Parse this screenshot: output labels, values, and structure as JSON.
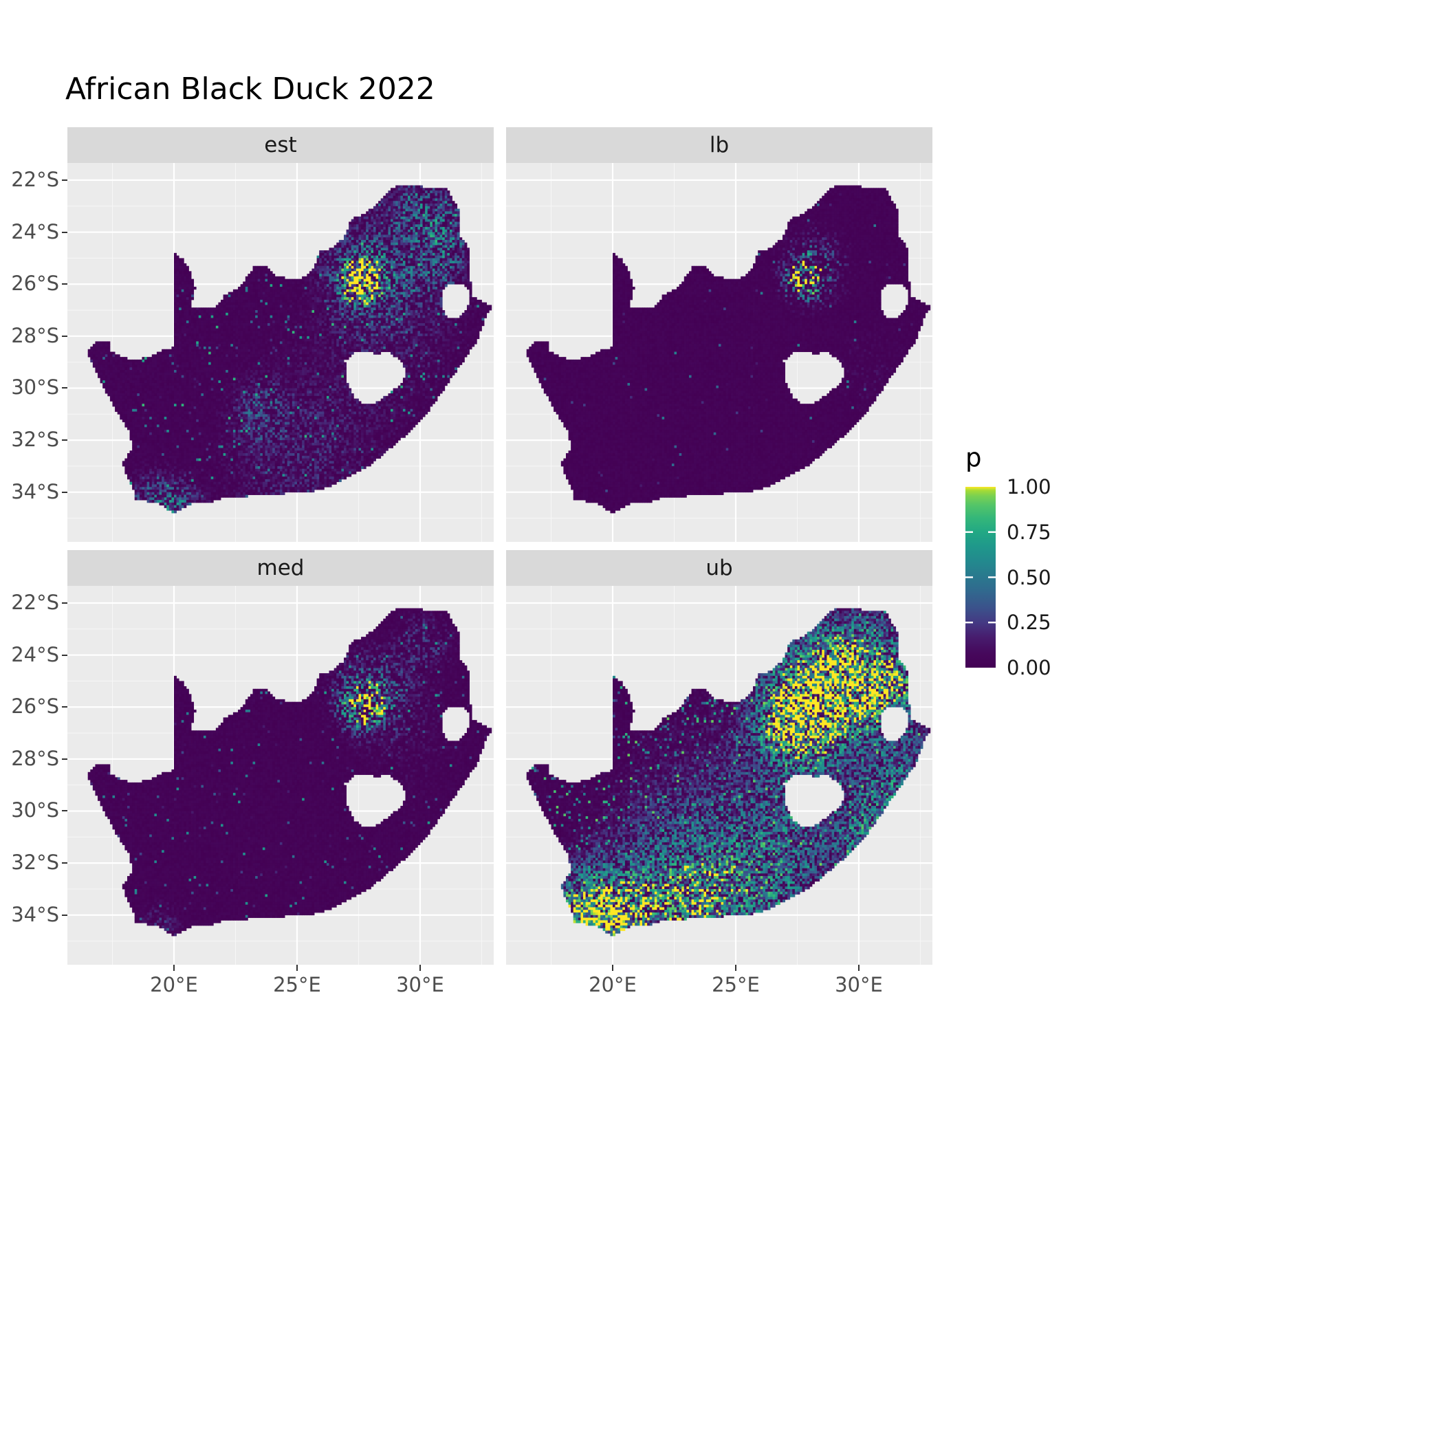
{
  "title": "African Black Duck 2022",
  "colors": {
    "page_bg": "#FFFFFF",
    "panel_bg": "#EBEBEB",
    "strip_bg": "#D9D9D9",
    "grid_major": "#FFFFFF",
    "grid_minor": "#F7F7F7",
    "axis_text": "#4D4D4D",
    "tick_mark": "#333333",
    "title_text": "#000000"
  },
  "chart_data": {
    "type": "heatmap",
    "title": "African Black Duck 2022",
    "subtitle": "",
    "facet_variable_levels": [
      "est",
      "lb",
      "med",
      "ub"
    ],
    "legend": {
      "title": "p",
      "tick_labels": [
        "1.00",
        "0.75",
        "0.50",
        "0.25",
        "0.00"
      ],
      "tick_values": [
        1.0,
        0.75,
        0.5,
        0.25,
        0.0
      ],
      "bar_break_marks": [
        0.25,
        0.5,
        0.75
      ],
      "range": [
        0.0,
        1.0
      ]
    },
    "x_axis": {
      "tick_labels": [
        "20°E",
        "25°E",
        "30°E"
      ],
      "tick_values": [
        20,
        25,
        30
      ],
      "minor_values": [
        17.5,
        22.5,
        27.5,
        32.5
      ]
    },
    "y_axis": {
      "tick_labels": [
        "22°S",
        "24°S",
        "26°S",
        "28°S",
        "30°S",
        "32°S",
        "34°S"
      ],
      "tick_values": [
        -22,
        -24,
        -26,
        -28,
        -30,
        -32,
        -34
      ],
      "minor_values": [
        -23,
        -25,
        -27,
        -29,
        -31,
        -33,
        -35
      ]
    },
    "lon_range": [
      15.67,
      32.99
    ],
    "lat_range": [
      -35.91,
      -21.34
    ],
    "grid_step_deg": 0.1,
    "colormap": {
      "name": "viridis",
      "stops": [
        [
          0.0,
          "#440154"
        ],
        [
          0.08,
          "#46085c"
        ],
        [
          0.17,
          "#471d6e"
        ],
        [
          0.25,
          "#443983"
        ],
        [
          0.33,
          "#3b528b"
        ],
        [
          0.42,
          "#31688e"
        ],
        [
          0.5,
          "#2a788e"
        ],
        [
          0.58,
          "#23888e"
        ],
        [
          0.67,
          "#1f988b"
        ],
        [
          0.75,
          "#22a884"
        ],
        [
          0.83,
          "#35b779"
        ],
        [
          0.9,
          "#54c568"
        ],
        [
          0.95,
          "#7ad151"
        ],
        [
          0.98,
          "#a5db36"
        ],
        [
          1.0,
          "#fde725"
        ]
      ]
    },
    "map": {
      "outline": [
        [
          16.45,
          -28.58
        ],
        [
          16.95,
          -28.15
        ],
        [
          17.35,
          -28.2
        ],
        [
          17.4,
          -28.55
        ],
        [
          17.75,
          -28.73
        ],
        [
          18.2,
          -28.9
        ],
        [
          18.75,
          -28.85
        ],
        [
          19.25,
          -28.7
        ],
        [
          19.6,
          -28.5
        ],
        [
          19.98,
          -28.43
        ],
        [
          19.98,
          -24.77
        ],
        [
          20.35,
          -25.05
        ],
        [
          20.65,
          -25.45
        ],
        [
          20.85,
          -26.15
        ],
        [
          20.7,
          -26.86
        ],
        [
          21.15,
          -26.87
        ],
        [
          21.7,
          -26.85
        ],
        [
          22.1,
          -26.38
        ],
        [
          22.6,
          -26.15
        ],
        [
          22.9,
          -25.8
        ],
        [
          23.3,
          -25.28
        ],
        [
          23.7,
          -25.3
        ],
        [
          24.1,
          -25.65
        ],
        [
          24.8,
          -25.82
        ],
        [
          25.35,
          -25.72
        ],
        [
          25.65,
          -25.45
        ],
        [
          25.92,
          -24.74
        ],
        [
          26.45,
          -24.6
        ],
        [
          26.9,
          -24.22
        ],
        [
          27.2,
          -23.5
        ],
        [
          27.7,
          -23.3
        ],
        [
          28.1,
          -23.05
        ],
        [
          28.6,
          -22.5
        ],
        [
          29.1,
          -22.2
        ],
        [
          29.7,
          -22.15
        ],
        [
          30.3,
          -22.3
        ],
        [
          31.1,
          -22.35
        ],
        [
          31.55,
          -23.1
        ],
        [
          31.55,
          -24.1
        ],
        [
          31.9,
          -24.4
        ],
        [
          32.05,
          -25.1
        ],
        [
          32.05,
          -25.85
        ],
        [
          32.15,
          -26.45
        ],
        [
          32.9,
          -26.85
        ],
        [
          32.6,
          -27.45
        ],
        [
          32.3,
          -28.2
        ],
        [
          31.8,
          -28.9
        ],
        [
          31.1,
          -29.85
        ],
        [
          30.6,
          -30.55
        ],
        [
          30.15,
          -31.15
        ],
        [
          29.5,
          -31.75
        ],
        [
          28.8,
          -32.3
        ],
        [
          28.0,
          -32.95
        ],
        [
          27.25,
          -33.3
        ],
        [
          26.45,
          -33.75
        ],
        [
          25.7,
          -33.95
        ],
        [
          25.0,
          -33.95
        ],
        [
          24.2,
          -34.1
        ],
        [
          23.4,
          -34.1
        ],
        [
          22.6,
          -34.2
        ],
        [
          22.1,
          -34.15
        ],
        [
          21.5,
          -34.4
        ],
        [
          20.7,
          -34.45
        ],
        [
          20.0,
          -34.82
        ],
        [
          19.6,
          -34.55
        ],
        [
          19.3,
          -34.4
        ],
        [
          18.85,
          -34.35
        ],
        [
          18.45,
          -34.3
        ],
        [
          18.35,
          -33.9
        ],
        [
          18.1,
          -33.4
        ],
        [
          17.9,
          -32.9
        ],
        [
          18.3,
          -32.3
        ],
        [
          18.2,
          -31.7
        ],
        [
          17.6,
          -30.8
        ],
        [
          17.1,
          -29.9
        ],
        [
          16.8,
          -29.25
        ],
        [
          16.45,
          -28.58
        ]
      ],
      "holes": [
        [
          [
            26.95,
            -28.95
          ],
          [
            27.4,
            -28.6
          ],
          [
            27.85,
            -28.55
          ],
          [
            28.25,
            -28.7
          ],
          [
            28.7,
            -28.58
          ],
          [
            29.15,
            -28.9
          ],
          [
            29.45,
            -29.3
          ],
          [
            29.28,
            -29.78
          ],
          [
            28.85,
            -30.1
          ],
          [
            28.25,
            -30.55
          ],
          [
            27.75,
            -30.62
          ],
          [
            27.35,
            -30.35
          ],
          [
            27.02,
            -29.7
          ],
          [
            26.95,
            -28.95
          ]
        ],
        [
          [
            30.9,
            -26.2
          ],
          [
            31.25,
            -25.95
          ],
          [
            31.7,
            -25.95
          ],
          [
            31.97,
            -26.25
          ],
          [
            31.95,
            -26.85
          ],
          [
            31.6,
            -27.3
          ],
          [
            31.15,
            -27.32
          ],
          [
            30.88,
            -26.95
          ],
          [
            30.9,
            -26.2
          ]
        ]
      ]
    },
    "facets": [
      {
        "label": "est",
        "seed": 11,
        "g_pow": 1.6,
        "speckle_prob": 0.05,
        "speckle_amp": 0.85,
        "base": 0.06,
        "hotspots": [
          {
            "lon": 27.6,
            "lat": -25.9,
            "r": 0.5,
            "i": 2.4
          },
          {
            "lon": 28.0,
            "lat": -25.5,
            "r": 1.3,
            "i": 0.7
          },
          {
            "lon": 29.9,
            "lat": -23.2,
            "r": 0.9,
            "i": 0.6
          },
          {
            "lon": 30.9,
            "lat": -25.2,
            "r": 0.8,
            "i": 0.5
          },
          {
            "lon": 31.2,
            "lat": -23.8,
            "r": 0.7,
            "i": 0.5
          },
          {
            "lon": 19.2,
            "lat": -34.3,
            "r": 0.8,
            "i": 0.55
          },
          {
            "lon": 20.3,
            "lat": -34.6,
            "r": 0.6,
            "i": 0.5
          },
          {
            "lon": 23.5,
            "lat": -30.9,
            "r": 0.7,
            "i": 0.45
          },
          {
            "lon": 26.0,
            "lat": -31.2,
            "r": 2.5,
            "i": 0.2
          },
          {
            "lon": 29.5,
            "lat": -27.5,
            "r": 2.0,
            "i": 0.22
          },
          {
            "lon": 24.5,
            "lat": -33.5,
            "r": 2.0,
            "i": 0.18
          }
        ]
      },
      {
        "label": "lb",
        "seed": 23,
        "g_pow": 3.2,
        "speckle_prob": 0.01,
        "speckle_amp": 0.55,
        "base": 0.05,
        "hotspots": [
          {
            "lon": 27.8,
            "lat": -25.8,
            "r": 0.5,
            "i": 1.8
          },
          {
            "lon": 28.2,
            "lat": -25.3,
            "r": 0.9,
            "i": 0.6
          },
          {
            "lon": 30.5,
            "lat": -29.5,
            "r": 1.5,
            "i": 0.15
          }
        ]
      },
      {
        "label": "med",
        "seed": 37,
        "g_pow": 2.2,
        "speckle_prob": 0.03,
        "speckle_amp": 0.7,
        "base": 0.055,
        "hotspots": [
          {
            "lon": 27.7,
            "lat": -25.9,
            "r": 0.55,
            "i": 2.0
          },
          {
            "lon": 28.1,
            "lat": -25.4,
            "r": 1.1,
            "i": 0.6
          },
          {
            "lon": 30.2,
            "lat": -23.4,
            "r": 0.8,
            "i": 0.35
          },
          {
            "lon": 19.5,
            "lat": -34.4,
            "r": 0.6,
            "i": 0.35
          },
          {
            "lon": 29.8,
            "lat": -27.3,
            "r": 1.8,
            "i": 0.15
          }
        ]
      },
      {
        "label": "ub",
        "seed": 51,
        "g_pow": 1.25,
        "speckle_prob": 0.16,
        "speckle_amp": 0.95,
        "base": 0.06,
        "hotspots": [
          {
            "lon": 28.2,
            "lat": -25.9,
            "r": 1.5,
            "i": 1.7
          },
          {
            "lon": 29.9,
            "lat": -24.2,
            "r": 1.4,
            "i": 1.0
          },
          {
            "lon": 31.2,
            "lat": -25.3,
            "r": 1.0,
            "i": 0.9
          },
          {
            "lon": 27.3,
            "lat": -26.9,
            "r": 0.9,
            "i": 0.8
          },
          {
            "lon": 30.9,
            "lat": -29.6,
            "r": 0.8,
            "i": 0.75
          },
          {
            "lon": 30.1,
            "lat": -30.9,
            "r": 0.7,
            "i": 0.7
          },
          {
            "lon": 31.9,
            "lat": -28.1,
            "r": 0.9,
            "i": 0.6
          },
          {
            "lon": 20.5,
            "lat": -34.4,
            "r": 1.2,
            "i": 0.95
          },
          {
            "lon": 23.3,
            "lat": -33.9,
            "r": 1.5,
            "i": 0.75
          },
          {
            "lon": 19.0,
            "lat": -33.6,
            "r": 1.1,
            "i": 0.85
          },
          {
            "lon": 18.8,
            "lat": -34.4,
            "r": 0.8,
            "i": 0.8
          },
          {
            "lon": 26.3,
            "lat": -32.9,
            "r": 1.4,
            "i": 0.5
          },
          {
            "lon": 24.5,
            "lat": -31.4,
            "r": 2.2,
            "i": 0.35
          },
          {
            "lon": 21.5,
            "lat": -32.6,
            "r": 2.0,
            "i": 0.35
          },
          {
            "lon": 27.8,
            "lat": -30.7,
            "r": 1.5,
            "i": 0.35
          },
          {
            "lon": 25.0,
            "lat": -29.0,
            "r": 3.0,
            "i": 0.18
          }
        ]
      }
    ]
  }
}
